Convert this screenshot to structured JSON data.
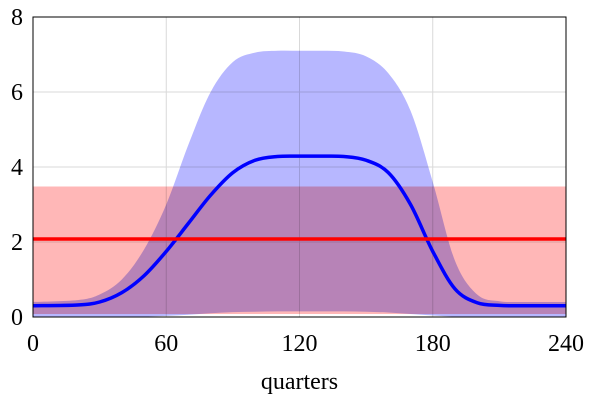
{
  "chart_data": {
    "type": "area",
    "xlabel": "quarters",
    "ylabel": "",
    "title": "",
    "xlim": [
      0,
      240
    ],
    "ylim": [
      0,
      8
    ],
    "xticks": [
      0,
      60,
      120,
      180,
      240
    ],
    "yticks": [
      0,
      2,
      4,
      6,
      8
    ],
    "grid": true,
    "legend": "none",
    "series": [
      {
        "color": "#0000ff",
        "band_color": "#aaaaff",
        "x": [
          0,
          20,
          30,
          40,
          50,
          60,
          70,
          80,
          90,
          100,
          110,
          120,
          130,
          140,
          150,
          160,
          170,
          180,
          190,
          200,
          210,
          220,
          240
        ],
        "values": [
          0.3,
          0.32,
          0.4,
          0.65,
          1.1,
          1.75,
          2.5,
          3.25,
          3.85,
          4.18,
          4.28,
          4.29,
          4.29,
          4.28,
          4.18,
          3.85,
          3.0,
          1.75,
          0.75,
          0.38,
          0.31,
          0.3,
          0.3
        ],
        "band_upper": [
          0.4,
          0.45,
          0.6,
          1.0,
          1.8,
          3.0,
          4.6,
          6.0,
          6.8,
          7.05,
          7.1,
          7.1,
          7.1,
          7.08,
          6.95,
          6.5,
          5.5,
          3.6,
          1.5,
          0.6,
          0.42,
          0.4,
          0.4
        ],
        "band_lower": [
          0.0,
          0.0,
          0.0,
          0.0,
          0.01,
          0.03,
          0.06,
          0.1,
          0.13,
          0.14,
          0.15,
          0.15,
          0.15,
          0.15,
          0.14,
          0.12,
          0.08,
          0.04,
          0.01,
          0.0,
          0.0,
          0.0,
          0.0
        ]
      },
      {
        "color": "#ff0000",
        "band_color": "#ffaaaa",
        "x": [
          0,
          240
        ],
        "values": [
          2.08,
          2.08
        ],
        "band_upper": [
          3.48,
          3.48
        ],
        "band_lower": [
          0.08,
          0.08
        ]
      }
    ]
  }
}
